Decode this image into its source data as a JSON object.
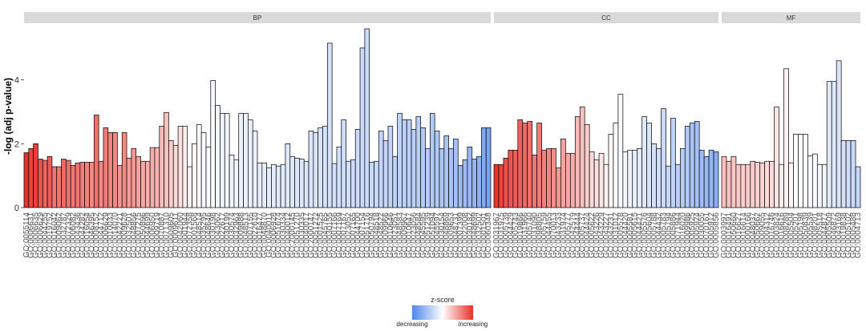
{
  "chart_data": {
    "type": "bar",
    "ylabel": "-log (adj p-value)",
    "xlabel": "",
    "ylim": [
      0,
      5.75
    ],
    "yticks": [
      0,
      2,
      4
    ],
    "grid": false,
    "legend": {
      "title": "z-score",
      "low_label": "decreasing",
      "high_label": "increasing",
      "low_color": "#4f86ec",
      "mid_color": "#ffffff",
      "high_color": "#e8312a",
      "placement": "bottom-center"
    },
    "facets": [
      {
        "name": "BP",
        "values": [
          1.72,
          1.85,
          2.0,
          1.52,
          1.48,
          1.6,
          1.28,
          1.28,
          1.52,
          1.48,
          1.32,
          1.4,
          1.42,
          1.42,
          1.42,
          2.9,
          1.45,
          2.5,
          2.35,
          2.35,
          1.32,
          2.35,
          1.55,
          1.85,
          1.6,
          1.45,
          1.45,
          1.88,
          1.88,
          2.55,
          2.98,
          2.1,
          1.95,
          2.55,
          2.55,
          1.28,
          2.0,
          2.6,
          2.35,
          1.9,
          3.98,
          3.2,
          2.95,
          2.95,
          1.65,
          1.5,
          2.95,
          2.95,
          2.75,
          2.4,
          1.4,
          1.4,
          1.25,
          1.35,
          1.3,
          1.35,
          2.0,
          1.6,
          1.55,
          1.52,
          1.45,
          2.4,
          2.35,
          2.5,
          2.55,
          5.15,
          1.38,
          1.9,
          2.75,
          1.45,
          1.5,
          2.45,
          5.0,
          5.6,
          1.42,
          1.45,
          2.4,
          2.1,
          2.55,
          1.6,
          2.95,
          2.75,
          2.75,
          2.45,
          2.85,
          2.5,
          1.85,
          2.95,
          2.4,
          1.85,
          2.25,
          1.85,
          2.15,
          1.32,
          1.5,
          1.9,
          1.52,
          1.6,
          2.5,
          2.5
        ],
        "zscores": [
          3.3,
          3.0,
          3.1,
          2.7,
          2.5,
          2.6,
          2.2,
          2.2,
          2.4,
          2.3,
          2.2,
          2.2,
          2.1,
          2.0,
          1.9,
          2.3,
          1.9,
          2.1,
          2.0,
          1.9,
          1.7,
          1.9,
          1.6,
          1.7,
          1.5,
          1.4,
          1.3,
          1.3,
          1.2,
          1.1,
          1.0,
          0.8,
          0.6,
          0.5,
          0.3,
          0.2,
          0.1,
          0.05,
          -0.05,
          -0.1,
          -0.15,
          -0.2,
          -0.25,
          -0.25,
          -0.3,
          -0.3,
          -0.35,
          -0.35,
          -0.4,
          -0.4,
          -0.45,
          -0.45,
          -0.5,
          -0.5,
          -0.55,
          -0.55,
          -0.6,
          -0.6,
          -0.65,
          -0.65,
          -0.7,
          -0.7,
          -0.75,
          -0.75,
          -0.8,
          -0.8,
          -0.85,
          -0.85,
          -0.9,
          -0.9,
          -0.95,
          -0.95,
          -1.0,
          -1.0,
          -1.05,
          -1.05,
          -1.1,
          -1.1,
          -1.15,
          -1.2,
          -1.2,
          -1.25,
          -1.3,
          -1.3,
          -1.35,
          -1.4,
          -1.4,
          -1.45,
          -1.5,
          -1.55,
          -1.6,
          -1.65,
          -1.7,
          -1.8,
          -1.85,
          -1.9,
          -2.0,
          -2.1,
          -2.3,
          -2.5
        ],
        "labels": [
          "GO:0055114",
          "GO:0006631",
          "GO:0006635",
          "GO:0006629",
          "GO:0044255",
          "GO:0019752",
          "GO:0016042",
          "GO:0009062",
          "GO:0032787",
          "GO:0072329",
          "GO:0006082",
          "GO:0043436",
          "GO:0044282",
          "GO:0016054",
          "GO:0046395",
          "GO:0008152",
          "GO:0044712",
          "GO:0006629",
          "GO:0010033",
          "GO:0014070",
          "GO:0042221",
          "GO:0009628",
          "GO:0032501",
          "GO:0048856",
          "GO:0007275",
          "GO:0050896",
          "GO:0044699",
          "GO:0006950",
          "GO:0009719",
          "GO:0070887",
          "GO:0071310",
          "GO:0009605",
          "GO:0009611",
          "GO:0042060",
          "GO:0001944",
          "GO:0072358",
          "GO:0001568",
          "GO:0048514",
          "GO:0035295",
          "GO:0048646",
          "GO:0030198",
          "GO:0043062",
          "GO:0022617",
          "GO:0030199",
          "GO:0030574",
          "GO:0032963",
          "GO:0009888",
          "GO:0048513",
          "GO:0007155",
          "GO:0022610",
          "GO:0016477",
          "GO:0048870",
          "GO:0040011",
          "GO:0006928",
          "GO:0051674",
          "GO:0030334",
          "GO:0040012",
          "GO:2000145",
          "GO:0051270",
          "GO:0030335",
          "GO:0040017",
          "GO:2000147",
          "GO:0051272",
          "GO:0001525",
          "GO:0045765",
          "GO:0030155",
          "GO:0007166",
          "GO:0007169",
          "GO:0007167",
          "GO:0023052",
          "GO:0007165",
          "GO:0044700",
          "GO:0007154",
          "GO:0051716",
          "GO:0050794",
          "GO:0048518",
          "GO:0048522",
          "GO:0009966",
          "GO:0010646",
          "GO:0023051",
          "GO:0048583",
          "GO:0009967",
          "GO:0010647",
          "GO:0023056",
          "GO:0048584",
          "GO:0045595",
          "GO:0051239",
          "GO:0051094",
          "GO:0045597",
          "GO:0030154",
          "GO:0048869",
          "GO:0009653",
          "GO:0048731",
          "GO:0007399",
          "GO:0022008",
          "GO:0030182",
          "GO:0048699",
          "GO:0032502",
          "GO:0001501",
          "GO:0060348"
        ]
      },
      {
        "name": "CC",
        "values": [
          1.35,
          1.35,
          1.55,
          1.8,
          1.8,
          2.75,
          2.65,
          2.7,
          1.65,
          2.65,
          1.8,
          1.85,
          1.85,
          1.25,
          2.15,
          1.7,
          1.7,
          2.85,
          3.15,
          2.6,
          1.75,
          1.5,
          1.7,
          1.35,
          2.3,
          2.65,
          3.55,
          1.75,
          1.8,
          1.8,
          1.85,
          2.85,
          2.65,
          2.0,
          1.85,
          3.1,
          1.3,
          2.8,
          1.35,
          1.85,
          2.55,
          2.65,
          2.7,
          1.8,
          1.6,
          1.8,
          1.75
        ],
        "zscores": [
          3.2,
          3.0,
          2.8,
          2.7,
          2.6,
          2.5,
          2.4,
          2.3,
          2.2,
          2.1,
          2.0,
          1.9,
          1.8,
          1.7,
          1.5,
          1.4,
          1.3,
          1.1,
          1.0,
          0.8,
          0.6,
          0.5,
          0.4,
          0.2,
          0.1,
          0.0,
          -0.1,
          -0.2,
          -0.3,
          -0.4,
          -0.5,
          -0.6,
          -0.7,
          -0.8,
          -0.9,
          -1.0,
          -1.1,
          -1.2,
          -1.3,
          -1.4,
          -1.5,
          -1.6,
          -1.7,
          -1.8,
          -1.9,
          -2.0,
          -2.2
        ],
        "labels": [
          "GO:0031967",
          "GO:0031975",
          "GO:0005739",
          "GO:0044429",
          "GO:0005743",
          "GO:0019866",
          "GO:0031966",
          "GO:0005740",
          "GO:0031090",
          "GO:0098805",
          "GO:0005759",
          "GO:0044455",
          "GO:0070013",
          "GO:0043233",
          "GO:0031974",
          "GO:0005777",
          "GO:0042579",
          "GO:0044444",
          "GO:0005737",
          "GO:0044424",
          "GO:0005622",
          "GO:0043226",
          "GO:0043229",
          "GO:0043227",
          "GO:0043231",
          "GO:0031012",
          "GO:0005578",
          "GO:0044420",
          "GO:0005581",
          "GO:0005615",
          "GO:0044421",
          "GO:0005576",
          "GO:0005604",
          "GO:0005788",
          "GO:0044432",
          "GO:0005783",
          "GO:0005794",
          "GO:0005886",
          "GO:0071944",
          "GO:0016020",
          "GO:0009986",
          "GO:0005925",
          "GO:0005924",
          "GO:0030055",
          "GO:0070161",
          "GO:0005912",
          "GO:0005856"
        ]
      },
      {
        "name": "MF",
        "values": [
          1.6,
          1.45,
          1.6,
          1.35,
          1.35,
          1.35,
          1.45,
          1.42,
          1.4,
          1.45,
          1.45,
          3.15,
          1.35,
          4.35,
          1.4,
          2.3,
          2.3,
          2.3,
          1.62,
          1.68,
          1.35,
          1.35,
          3.95,
          3.95,
          4.6,
          2.1,
          2.1,
          2.1,
          1.28
        ],
        "zscores": [
          1.0,
          1.0,
          0.9,
          0.9,
          0.8,
          0.8,
          0.8,
          0.7,
          0.7,
          0.6,
          0.6,
          0.4,
          0.3,
          0.2,
          0.1,
          0.0,
          0.0,
          0.0,
          -0.1,
          -0.1,
          -0.2,
          -0.3,
          -0.5,
          -0.6,
          -0.7,
          -0.8,
          -0.9,
          -1.0,
          -1.1
        ],
        "labels": [
          "GO:0003997",
          "GO:0016491",
          "GO:0050660",
          "GO:0016627",
          "GO:0016614",
          "GO:0000166",
          "GO:0048037",
          "GO:0050662",
          "GO:0009055",
          "GO:0004312",
          "GO:0016746",
          "GO:0003824",
          "GO:0016616",
          "GO:0008289",
          "GO:0005504",
          "GO:0005201",
          "GO:0005198",
          "GO:0050839",
          "GO:0005539",
          "GO:0008201",
          "GO:0005518",
          "GO:0044877",
          "GO:0005509",
          "GO:0046872",
          "GO:0043169",
          "GO:0019838",
          "GO:0005102",
          "GO:0005488",
          "GO:0004713"
        ]
      }
    ]
  }
}
